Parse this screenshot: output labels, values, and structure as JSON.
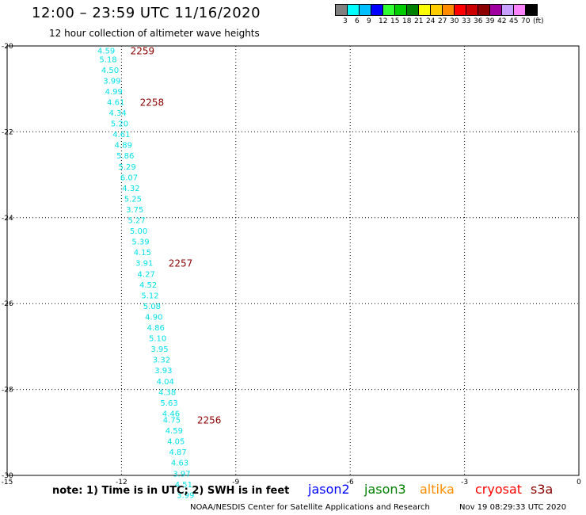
{
  "title": "12:00 – 23:59 UTC 11/16/2020",
  "subtitle": "12 hour collection of altimeter wave heights",
  "legend": {
    "colors": [
      "#808080",
      "#00ffff",
      "#00bfff",
      "#0000ff",
      "#32ff32",
      "#00cd00",
      "#008000",
      "#ffff00",
      "#ffcc00",
      "#ff8c00",
      "#ff0000",
      "#cd0000",
      "#8b0000",
      "#a000a0",
      "#c8a0ff",
      "#ff82ff",
      "#000000"
    ],
    "labels": [
      "3",
      "6",
      "9",
      "12",
      "15",
      "18",
      "21",
      "24",
      "27",
      "30",
      "33",
      "36",
      "39",
      "42",
      "45",
      "70",
      "(ft)"
    ]
  },
  "map": {
    "lon_range": [
      -15,
      0
    ],
    "lat_range": [
      -30,
      -20
    ],
    "x_ticks": [
      "-15",
      "-12",
      "-9",
      "-6",
      "-3",
      "0"
    ],
    "y_ticks": [
      "-20",
      "-22",
      "-24",
      "-26",
      "-28",
      "-30"
    ],
    "grid": true,
    "wave_color": "#00e0e8",
    "time_color": "#8b0000",
    "wave_heights": [
      {
        "lat": -20.1,
        "lon": -12.4,
        "swh": "4.59"
      },
      {
        "lat": -20.3,
        "lon": -12.35,
        "swh": "5.18"
      },
      {
        "lat": -20.55,
        "lon": -12.3,
        "swh": "4.50"
      },
      {
        "lat": -20.8,
        "lon": -12.25,
        "swh": "3.99"
      },
      {
        "lat": -21.05,
        "lon": -12.2,
        "swh": "4.99"
      },
      {
        "lat": -21.3,
        "lon": -12.15,
        "swh": "4.61"
      },
      {
        "lat": -21.55,
        "lon": -12.1,
        "swh": "4.34"
      },
      {
        "lat": -21.8,
        "lon": -12.05,
        "swh": "5.20"
      },
      {
        "lat": -22.05,
        "lon": -12.0,
        "swh": "4.61"
      },
      {
        "lat": -22.3,
        "lon": -11.95,
        "swh": "4.89"
      },
      {
        "lat": -22.55,
        "lon": -11.9,
        "swh": "5.86"
      },
      {
        "lat": -22.8,
        "lon": -11.85,
        "swh": "5.29"
      },
      {
        "lat": -23.05,
        "lon": -11.8,
        "swh": "6.07"
      },
      {
        "lat": -23.3,
        "lon": -11.75,
        "swh": "4.32"
      },
      {
        "lat": -23.55,
        "lon": -11.7,
        "swh": "5.25"
      },
      {
        "lat": -23.8,
        "lon": -11.65,
        "swh": "3.75"
      },
      {
        "lat": -24.05,
        "lon": -11.6,
        "swh": "5.27"
      },
      {
        "lat": -24.3,
        "lon": -11.55,
        "swh": "5.00"
      },
      {
        "lat": -24.55,
        "lon": -11.5,
        "swh": "5.39"
      },
      {
        "lat": -24.8,
        "lon": -11.45,
        "swh": "4.15"
      },
      {
        "lat": -25.05,
        "lon": -11.4,
        "swh": "3.91"
      },
      {
        "lat": -25.3,
        "lon": -11.35,
        "swh": "4.27"
      },
      {
        "lat": -25.55,
        "lon": -11.3,
        "swh": "4.52"
      },
      {
        "lat": -25.8,
        "lon": -11.25,
        "swh": "5.12"
      },
      {
        "lat": -26.05,
        "lon": -11.2,
        "swh": "5.08"
      },
      {
        "lat": -26.3,
        "lon": -11.15,
        "swh": "4.90"
      },
      {
        "lat": -26.55,
        "lon": -11.1,
        "swh": "4.86"
      },
      {
        "lat": -26.8,
        "lon": -11.05,
        "swh": "5.10"
      },
      {
        "lat": -27.05,
        "lon": -11.0,
        "swh": "3.95"
      },
      {
        "lat": -27.3,
        "lon": -10.95,
        "swh": "3.32"
      },
      {
        "lat": -27.55,
        "lon": -10.9,
        "swh": "3.93"
      },
      {
        "lat": -27.8,
        "lon": -10.85,
        "swh": "4.04"
      },
      {
        "lat": -28.05,
        "lon": -10.8,
        "swh": "4.38"
      },
      {
        "lat": -28.3,
        "lon": -10.75,
        "swh": "5.63"
      },
      {
        "lat": -28.55,
        "lon": -10.7,
        "swh": "4.46"
      },
      {
        "lat": -28.7,
        "lon": -10.68,
        "swh": "4.75"
      },
      {
        "lat": -28.95,
        "lon": -10.62,
        "swh": "4.59"
      },
      {
        "lat": -29.2,
        "lon": -10.57,
        "swh": "4.05"
      },
      {
        "lat": -29.45,
        "lon": -10.52,
        "swh": "4.87"
      },
      {
        "lat": -29.7,
        "lon": -10.47,
        "swh": "4.63"
      },
      {
        "lat": -29.95,
        "lon": -10.42,
        "swh": "3.97"
      },
      {
        "lat": -30.2,
        "lon": -10.37,
        "swh": "4.51"
      },
      {
        "lat": -30.45,
        "lon": -10.32,
        "swh": "3.99"
      }
    ],
    "time_labels": [
      {
        "lat": -20.1,
        "lon": -11.45,
        "text": "2259"
      },
      {
        "lat": -21.3,
        "lon": -11.2,
        "text": "2258"
      },
      {
        "lat": -25.05,
        "lon": -10.45,
        "text": "2257"
      },
      {
        "lat": -28.7,
        "lon": -9.7,
        "text": "2256"
      }
    ]
  },
  "note": "note: 1) Time is in UTC; 2) SWH is in feet",
  "missions": [
    {
      "name": "jason2",
      "color": "#0000ff"
    },
    {
      "name": "jason3",
      "color": "#008000"
    },
    {
      "name": "altika",
      "color": "#ff8c00"
    },
    {
      "name": "cryosat",
      "color": "#ff0000"
    },
    {
      "name": "s3a",
      "color": "#8b0000"
    }
  ],
  "footer": {
    "credit": "NOAA/NESDIS Center for Satellite Applications and Research",
    "timestamp": "Nov 19 08:29:33 UTC 2020"
  }
}
